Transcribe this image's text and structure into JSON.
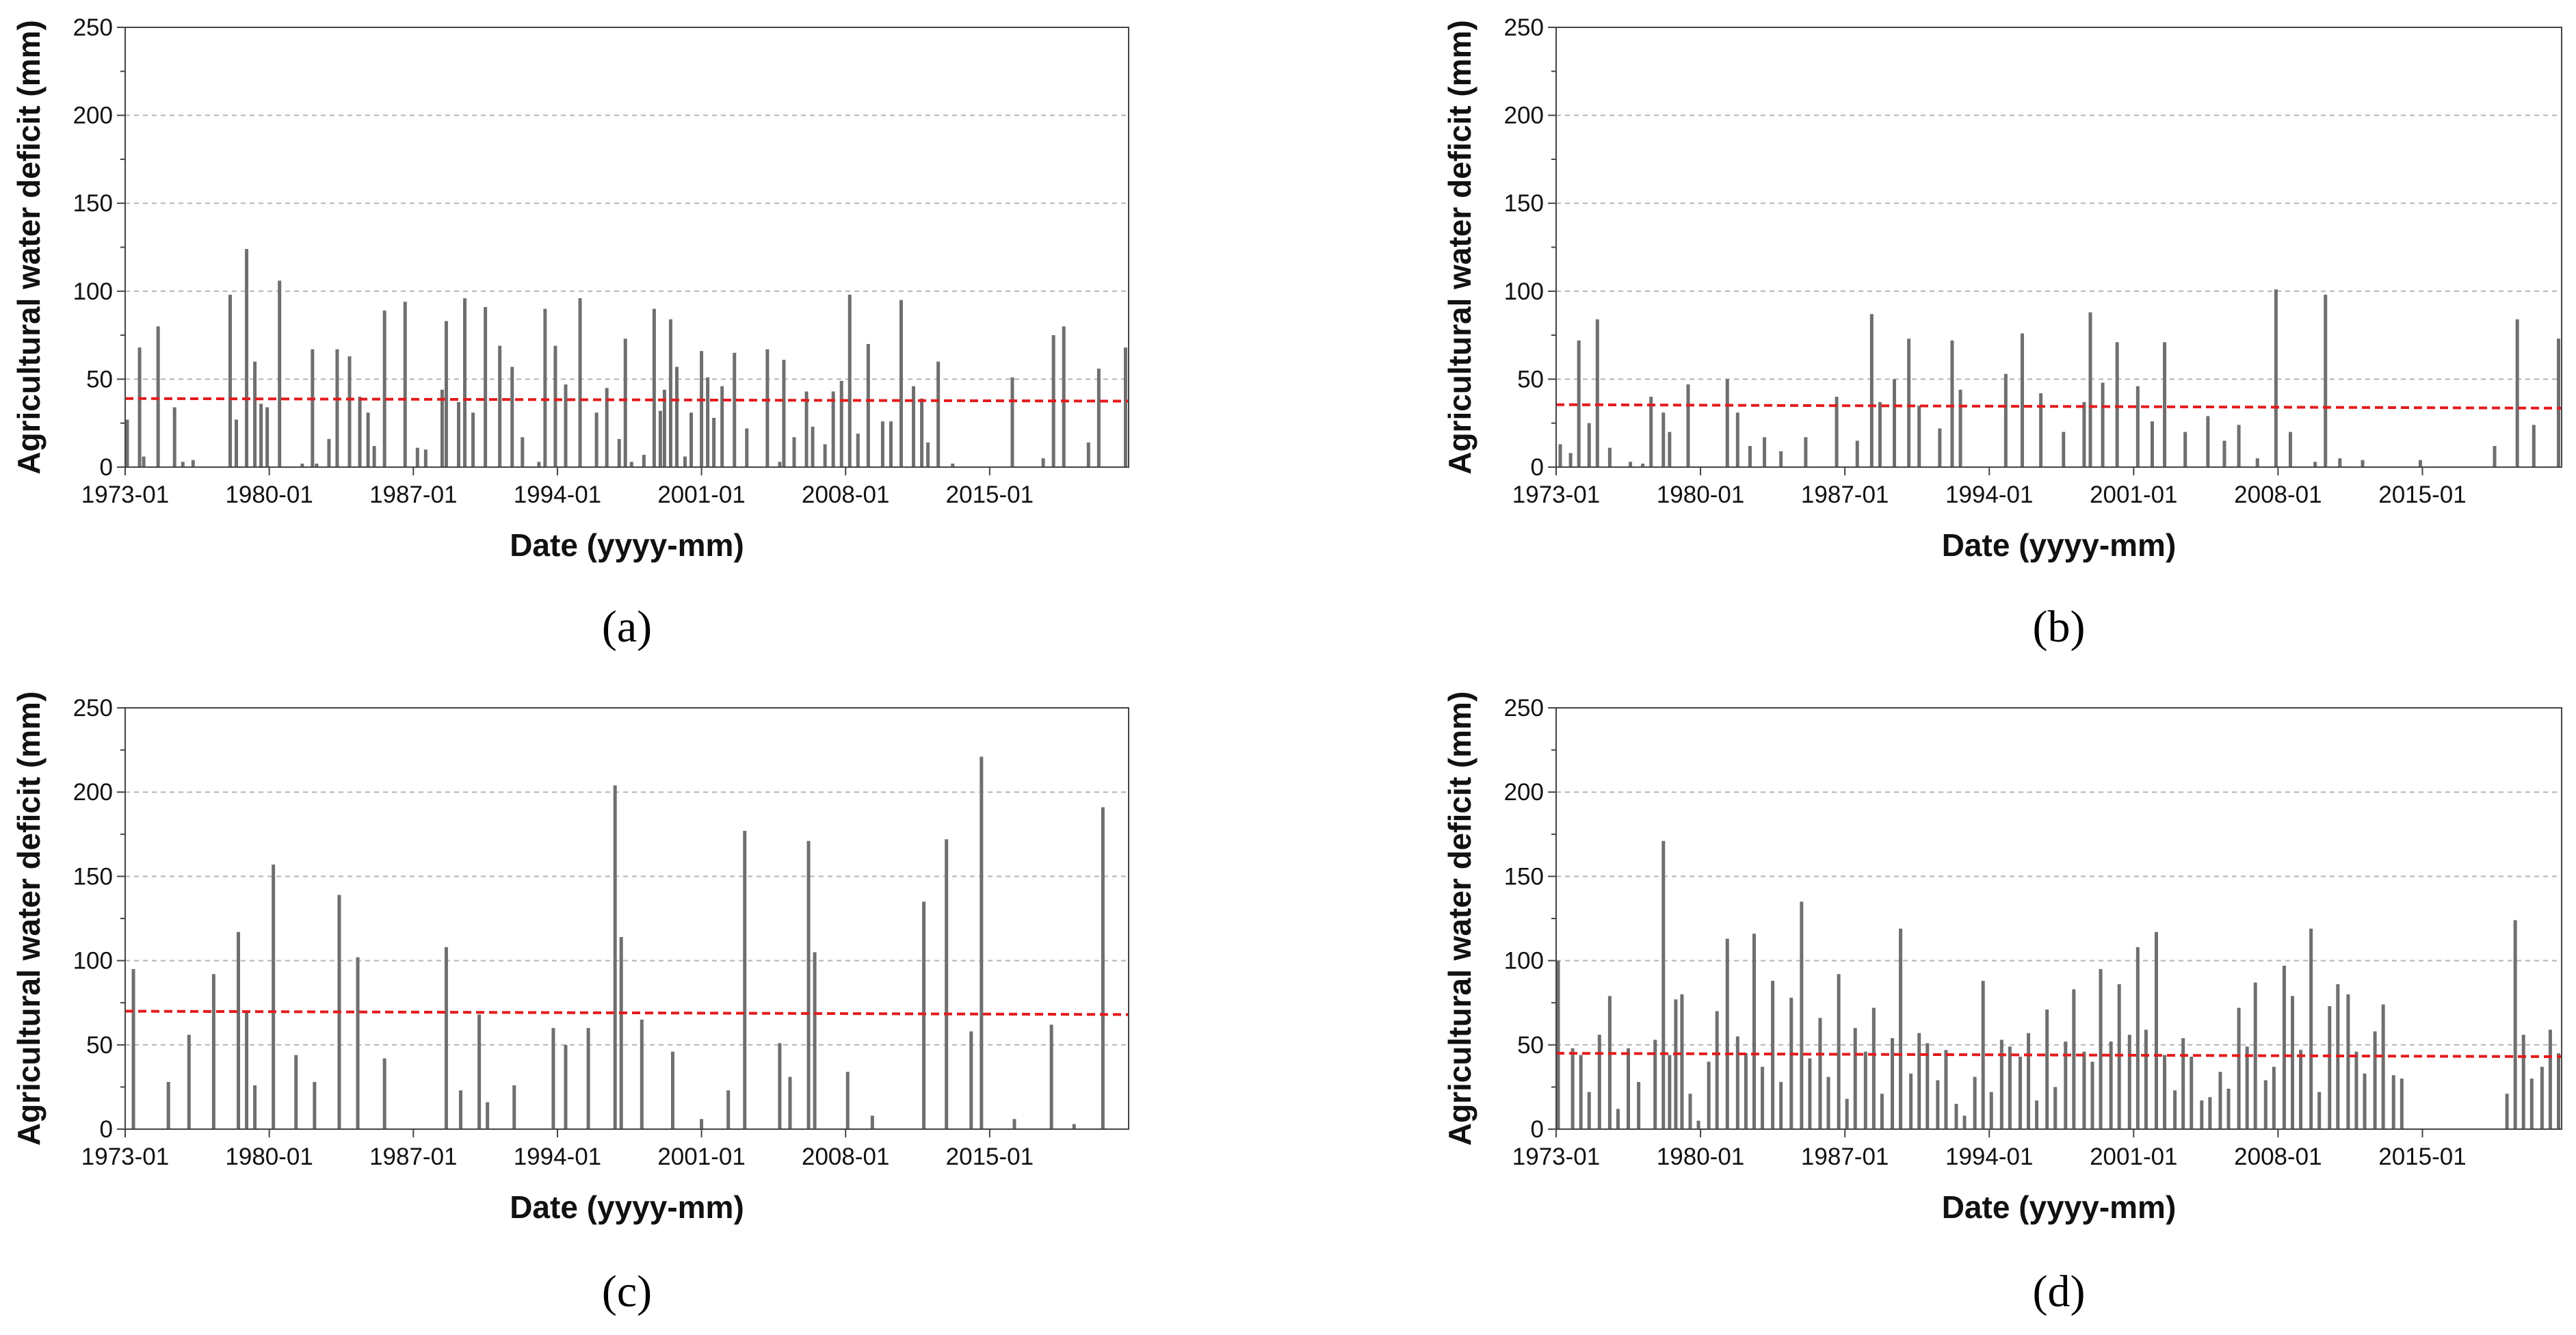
{
  "chart_data": [
    {
      "panel": "a",
      "panel_label": "(a)",
      "type": "bar",
      "xlabel": "Date (yyyy-mm)",
      "ylabel": "Agricultural water deficit (mm)",
      "ylim": [
        0,
        250
      ],
      "yticks": [
        0,
        50,
        100,
        150,
        200,
        250
      ],
      "xlim": [
        1973.0,
        2021.75
      ],
      "xticks": [
        "1973-01",
        "1980-01",
        "1987-01",
        "1994-01",
        "2001-01",
        "2008-01",
        "2015-01"
      ],
      "grid": true,
      "threshold": {
        "start": 39,
        "end": 37.5,
        "color": "#e41a1c"
      },
      "series": [
        {
          "name": "Agricultural water deficit",
          "color": "#6f6f6f",
          "x": [
            1973.1,
            1973.7,
            1973.9,
            1974.6,
            1975.4,
            1975.8,
            1976.3,
            1978.1,
            1978.4,
            1978.9,
            1979.3,
            1979.6,
            1979.9,
            1980.5,
            1981.6,
            1982.1,
            1982.3,
            1982.9,
            1983.3,
            1983.9,
            1984.4,
            1984.8,
            1985.1,
            1985.6,
            1986.6,
            1987.2,
            1987.6,
            1988.4,
            1988.6,
            1989.2,
            1989.5,
            1989.9,
            1990.5,
            1991.2,
            1991.8,
            1992.3,
            1993.1,
            1993.4,
            1993.9,
            1994.4,
            1995.1,
            1995.9,
            1996.4,
            1997.0,
            1997.3,
            1997.6,
            1998.2,
            1998.7,
            1999.0,
            1999.2,
            1999.5,
            1999.8,
            2000.2,
            2000.5,
            2001.0,
            2001.3,
            2001.6,
            2002.0,
            2002.6,
            2003.2,
            2004.2,
            2004.8,
            2005.0,
            2005.5,
            2006.1,
            2006.4,
            2007.0,
            2007.4,
            2007.8,
            2008.2,
            2008.6,
            2009.1,
            2009.8,
            2010.2,
            2010.7,
            2011.3,
            2011.7,
            2012.0,
            2012.5,
            2013.2,
            2016.1,
            2017.6,
            2018.1,
            2018.6,
            2019.8,
            2020.3,
            2021.6
          ],
          "values": [
            27,
            68,
            6,
            80,
            34,
            3,
            4,
            98,
            27,
            124,
            60,
            36,
            34,
            106,
            2,
            67,
            2,
            16,
            67,
            63,
            40,
            31,
            12,
            89,
            94,
            11,
            10,
            44,
            83,
            37,
            96,
            31,
            91,
            69,
            57,
            17,
            3,
            90,
            69,
            47,
            96,
            31,
            45,
            16,
            73,
            3,
            7,
            90,
            32,
            44,
            84,
            57,
            6,
            31,
            66,
            51,
            28,
            46,
            65,
            22,
            67,
            3,
            61,
            17,
            43,
            23,
            13,
            43,
            49,
            98,
            19,
            70,
            26,
            26,
            95,
            46,
            39,
            14,
            60,
            2,
            51,
            5,
            75,
            80,
            14,
            56,
            68
          ]
        }
      ]
    },
    {
      "panel": "b",
      "panel_label": "(b)",
      "type": "bar",
      "xlabel": "Date (yyyy-mm)",
      "ylabel": "Agricultural water deficit (mm)",
      "ylim": [
        0,
        250
      ],
      "yticks": [
        0,
        50,
        100,
        150,
        200,
        250
      ],
      "xlim": [
        1973.0,
        2021.75
      ],
      "xticks": [
        "1973-01",
        "1980-01",
        "1987-01",
        "1994-01",
        "2001-01",
        "2008-01",
        "2015-01"
      ],
      "grid": true,
      "threshold": {
        "start": 35.5,
        "end": 33.5,
        "color": "#e41a1c"
      },
      "series": [
        {
          "name": "Agricultural water deficit",
          "color": "#6f6f6f",
          "x": [
            1973.2,
            1973.7,
            1974.1,
            1974.6,
            1975.0,
            1975.6,
            1976.6,
            1977.2,
            1977.6,
            1978.2,
            1978.5,
            1979.4,
            1981.3,
            1981.8,
            1982.4,
            1983.1,
            1983.9,
            1985.1,
            1986.6,
            1987.6,
            1988.3,
            1988.7,
            1989.4,
            1990.1,
            1990.6,
            1991.6,
            1992.2,
            1992.6,
            1994.8,
            1995.6,
            1996.5,
            1997.6,
            1998.6,
            1998.9,
            1999.5,
            2000.2,
            2001.2,
            2001.9,
            2002.5,
            2003.5,
            2004.6,
            2005.4,
            2006.1,
            2007.0,
            2007.9,
            2008.6,
            2009.8,
            2010.3,
            2011.0,
            2012.1,
            2014.9,
            2018.5,
            2019.6,
            2020.4,
            2021.6
          ],
          "values": [
            13,
            8,
            72,
            25,
            84,
            11,
            3,
            2,
            40,
            31,
            20,
            47,
            50,
            31,
            12,
            17,
            9,
            17,
            40,
            15,
            87,
            37,
            50,
            73,
            35,
            22,
            72,
            44,
            53,
            76,
            42,
            20,
            37,
            88,
            48,
            71,
            46,
            26,
            71,
            20,
            29,
            15,
            24,
            5,
            101,
            20,
            3,
            98,
            5,
            4,
            4,
            12,
            84,
            24,
            73
          ]
        }
      ]
    },
    {
      "panel": "c",
      "panel_label": "(c)",
      "type": "bar",
      "xlabel": "Date (yyyy-mm)",
      "ylabel": "Agricultural water deficit (mm)",
      "ylim": [
        0,
        250
      ],
      "yticks": [
        0,
        50,
        100,
        150,
        200,
        250
      ],
      "xlim": [
        1973.0,
        2021.75
      ],
      "xticks": [
        "1973-01",
        "1980-01",
        "1987-01",
        "1994-01",
        "2001-01",
        "2008-01",
        "2015-01"
      ],
      "grid": true,
      "threshold": {
        "start": 70,
        "end": 68,
        "color": "#e41a1c"
      },
      "series": [
        {
          "name": "Agricultural water deficit",
          "color": "#6f6f6f",
          "x": [
            1973.4,
            1975.1,
            1976.1,
            1977.3,
            1978.5,
            1978.9,
            1979.3,
            1980.2,
            1981.3,
            1982.2,
            1983.4,
            1984.3,
            1985.6,
            1988.6,
            1989.3,
            1990.2,
            1990.6,
            1991.9,
            1993.8,
            1994.4,
            1995.5,
            1996.8,
            1997.1,
            1998.1,
            1999.6,
            2001.0,
            2002.3,
            2003.1,
            2004.8,
            2005.3,
            2006.2,
            2006.5,
            2008.1,
            2009.3,
            2011.8,
            2012.9,
            2014.1,
            2014.6,
            2016.2,
            2018.0,
            2019.1,
            2020.5
          ],
          "values": [
            95,
            28,
            56,
            92,
            117,
            70,
            26,
            157,
            44,
            28,
            139,
            102,
            42,
            108,
            23,
            68,
            16,
            26,
            60,
            50,
            60,
            204,
            114,
            65,
            46,
            6,
            23,
            177,
            51,
            31,
            171,
            105,
            34,
            8,
            135,
            172,
            58,
            221,
            6,
            62,
            3,
            191
          ]
        }
      ]
    },
    {
      "panel": "d",
      "panel_label": "(d)",
      "type": "bar",
      "xlabel": "Date (yyyy-mm)",
      "ylabel": "Agricultural water deficit (mm)",
      "ylim": [
        0,
        250
      ],
      "yticks": [
        0,
        50,
        100,
        150,
        200,
        250
      ],
      "xlim": [
        1973.0,
        2021.75
      ],
      "xticks": [
        "1973-01",
        "1980-01",
        "1987-01",
        "1994-01",
        "2001-01",
        "2008-01",
        "2015-01"
      ],
      "grid": true,
      "threshold": {
        "start": 45,
        "end": 43,
        "color": "#e41a1c"
      },
      "series": [
        {
          "name": "Agricultural water deficit",
          "color": "#6f6f6f",
          "x": [
            1973.1,
            1973.8,
            1974.2,
            1974.6,
            1975.1,
            1975.6,
            1976.0,
            1976.5,
            1977.0,
            1977.8,
            1978.2,
            1978.5,
            1978.8,
            1979.1,
            1979.5,
            1979.9,
            1980.4,
            1980.8,
            1981.3,
            1981.8,
            1982.2,
            1982.6,
            1983.0,
            1983.5,
            1983.9,
            1984.4,
            1984.9,
            1985.3,
            1985.8,
            1986.2,
            1986.7,
            1987.1,
            1987.5,
            1988.0,
            1988.4,
            1988.8,
            1989.3,
            1989.7,
            1990.2,
            1990.6,
            1991.0,
            1991.5,
            1991.9,
            1992.4,
            1992.8,
            1993.3,
            1993.7,
            1994.1,
            1994.6,
            1995.0,
            1995.5,
            1995.9,
            1996.3,
            1996.8,
            1997.2,
            1997.7,
            1998.1,
            1998.6,
            1999.0,
            1999.4,
            1999.9,
            2000.3,
            2000.8,
            2001.2,
            2001.6,
            2002.1,
            2002.5,
            2003.0,
            2003.4,
            2003.8,
            2004.3,
            2004.7,
            2005.2,
            2005.6,
            2006.1,
            2006.5,
            2006.9,
            2007.4,
            2007.8,
            2008.3,
            2008.7,
            2009.1,
            2009.6,
            2010.0,
            2010.5,
            2010.9,
            2011.4,
            2011.8,
            2012.2,
            2012.7,
            2013.1,
            2013.6,
            2014.0,
            2019.1,
            2019.5,
            2019.9,
            2020.3,
            2020.8,
            2021.2,
            2021.6
          ],
          "values": [
            100,
            48,
            44,
            22,
            56,
            79,
            12,
            48,
            28,
            53,
            171,
            44,
            77,
            80,
            21,
            5,
            40,
            70,
            113,
            55,
            45,
            116,
            37,
            88,
            28,
            78,
            135,
            42,
            66,
            31,
            92,
            18,
            60,
            46,
            72,
            21,
            54,
            119,
            33,
            57,
            51,
            29,
            47,
            15,
            8,
            31,
            88,
            22,
            53,
            49,
            43,
            57,
            17,
            71,
            25,
            52,
            83,
            46,
            40,
            95,
            52,
            86,
            56,
            108,
            59,
            117,
            44,
            23,
            54,
            43,
            17,
            19,
            34,
            24,
            72,
            49,
            87,
            29,
            37,
            97,
            79,
            47,
            119,
            22,
            73,
            86,
            80,
            46,
            33,
            58,
            74,
            32,
            30,
            21,
            124,
            56,
            30,
            37,
            59,
            45
          ]
        }
      ]
    }
  ]
}
